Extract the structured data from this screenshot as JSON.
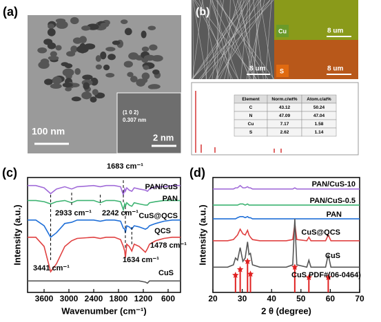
{
  "panel_a": {
    "label": "(a)",
    "scale_main": "100 nm",
    "scale_inset": "2 nm",
    "plane": "(1 0 2)",
    "spacing": "0.307 nm"
  },
  "panel_b": {
    "label": "(b)",
    "scale_sem": "8 um",
    "cu_label": "Cu",
    "scale_cu": "8 um",
    "s_label": "S",
    "scale_s": "8 um",
    "table": {
      "header": [
        "Element",
        "Norm.c/wt%",
        "Atom.c/at%"
      ],
      "rows": [
        [
          "C",
          43.12,
          50.24
        ],
        [
          "N",
          47.09,
          47.04
        ],
        [
          "Cu",
          7.17,
          1.58
        ],
        [
          "S",
          2.62,
          1.14
        ]
      ]
    }
  },
  "chart_data": [
    {
      "type": "line",
      "panel_label": "(c)",
      "x_label": "Wavenumber (cm⁻¹)",
      "y_label": "Intensity (a.u.)",
      "x": [
        4000,
        3800,
        3600,
        3441,
        3300,
        3100,
        2933,
        2800,
        2400,
        2242,
        2100,
        1900,
        1750,
        1683,
        1650,
        1634,
        1600,
        1540,
        1478,
        1420,
        1300,
        1150,
        1100,
        1050,
        900,
        700,
        500,
        300
      ],
      "xlim": [
        4000,
        300
      ],
      "xticks": [
        3600,
        3000,
        2400,
        1800,
        1200,
        600
      ],
      "ylim": [
        0,
        100
      ],
      "series": [
        {
          "name": "PAN/CuS",
          "color": "#a06ad8",
          "values": [
            93,
            93,
            91,
            86,
            90,
            92,
            90,
            92,
            93,
            92,
            93,
            93,
            92,
            85,
            90,
            88,
            91,
            89,
            88,
            91,
            90,
            89,
            88,
            90,
            92,
            92,
            93,
            93
          ]
        },
        {
          "name": "PAN",
          "color": "#3cb371",
          "values": [
            80,
            80,
            79,
            77,
            79,
            80,
            78,
            80,
            80,
            78,
            80,
            80,
            79,
            72,
            77,
            75,
            78,
            76,
            75,
            78,
            77,
            76,
            76,
            78,
            79,
            80,
            80,
            80
          ]
        },
        {
          "name": "CuS@QCS",
          "color": "#1f6fd8",
          "values": [
            63,
            63,
            58,
            48,
            52,
            60,
            61,
            63,
            63,
            62,
            63,
            63,
            62,
            56,
            55,
            52,
            58,
            57,
            55,
            58,
            57,
            55,
            56,
            58,
            60,
            62,
            63,
            63
          ]
        },
        {
          "name": "QCS",
          "color": "#e04040",
          "values": [
            48,
            48,
            40,
            18,
            25,
            40,
            45,
            47,
            48,
            47,
            48,
            48,
            46,
            40,
            36,
            30,
            42,
            40,
            36,
            42,
            40,
            35,
            38,
            42,
            45,
            47,
            48,
            48
          ]
        },
        {
          "name": "CuS",
          "color": "#555555",
          "values": [
            10,
            10,
            10,
            10,
            10,
            10,
            10,
            10,
            10,
            10,
            10,
            10,
            10,
            10,
            10,
            10,
            10,
            10,
            10,
            10,
            10,
            9,
            8,
            10,
            10,
            10,
            10,
            10
          ]
        }
      ],
      "annotations": [
        {
          "text": "1683 cm⁻¹",
          "x": 1683
        },
        {
          "text": "2933 cm⁻¹",
          "x": 2933
        },
        {
          "text": "2242 cm⁻¹",
          "x": 2242
        },
        {
          "text": "1634 cm⁻¹",
          "x": 1634
        },
        {
          "text": "1478 cm⁻¹",
          "x": 1478
        },
        {
          "text": "3441 cm⁻¹",
          "x": 3441
        }
      ]
    },
    {
      "type": "line",
      "panel_label": "(d)",
      "x_label": "2 θ (degree)",
      "y_label": "Intensity (a.u.)",
      "x": [
        20,
        25,
        27,
        27.7,
        28.4,
        29.3,
        30.2,
        31,
        31.8,
        32.3,
        32.8,
        33.5,
        36,
        40,
        45,
        47.2,
        47.9,
        48.6,
        52,
        52.7,
        53.4,
        58.4,
        59.3,
        60.2,
        65,
        70
      ],
      "xlim": [
        20,
        70
      ],
      "xticks": [
        20,
        30,
        40,
        50,
        60,
        70
      ],
      "ylim": [
        0,
        100
      ],
      "series": [
        {
          "name": "PAN/CuS-10",
          "color": "#a06ad8",
          "values": [
            90,
            90,
            90,
            91,
            91,
            93,
            91,
            91,
            92,
            91,
            91,
            90,
            90,
            90,
            90,
            90,
            91,
            90,
            90,
            90,
            90,
            90,
            90,
            90,
            90,
            90
          ]
        },
        {
          "name": "PAN/CuS-0.5",
          "color": "#3cb371",
          "values": [
            76,
            76,
            76,
            76,
            76,
            77,
            77,
            76,
            77,
            76,
            76,
            76,
            76,
            76,
            76,
            76,
            76,
            76,
            76,
            76,
            76,
            76,
            76,
            76,
            76,
            76
          ]
        },
        {
          "name": "PAN",
          "color": "#1f6fd8",
          "values": [
            64,
            64,
            64,
            64,
            65,
            66,
            66,
            65,
            66,
            65,
            65,
            64,
            64,
            64,
            64,
            64,
            64,
            64,
            64,
            64,
            64,
            64,
            64,
            64,
            64,
            64
          ]
        },
        {
          "name": "CuS@QCS",
          "color": "#e04040",
          "values": [
            45,
            45,
            46,
            48,
            50,
            55,
            51,
            50,
            54,
            50,
            48,
            46,
            45,
            45,
            45,
            46,
            60,
            46,
            45,
            48,
            45,
            45,
            50,
            45,
            45,
            45
          ]
        },
        {
          "name": "CuS",
          "color": "#555555",
          "values": [
            22,
            22,
            24,
            30,
            28,
            39,
            27,
            30,
            44,
            33,
            34,
            24,
            22,
            22,
            22,
            24,
            64,
            24,
            22,
            28,
            22,
            22,
            33,
            22,
            22,
            22
          ]
        }
      ],
      "reference": {
        "name": "CuS PDF#(06-0464)",
        "color": "#e02020",
        "x": [
          27.7,
          29.3,
          31.8,
          32.8,
          47.9,
          52.7,
          59.3
        ],
        "values": [
          15,
          20,
          27,
          16,
          22,
          13,
          13
        ]
      }
    }
  ]
}
